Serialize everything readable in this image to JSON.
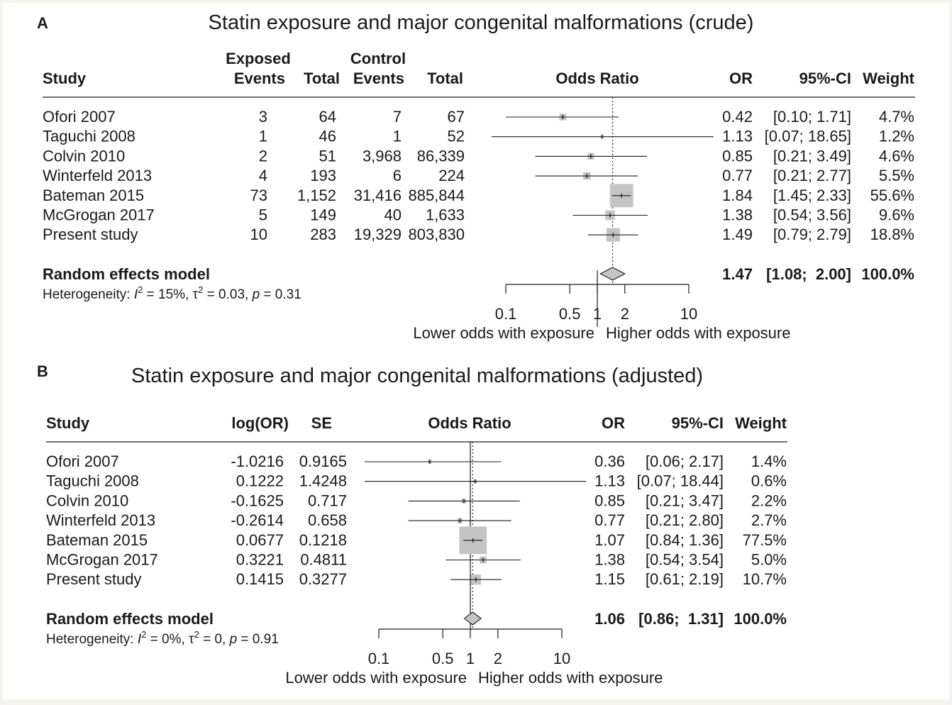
{
  "panels": [
    {
      "letter": "A",
      "title": "Statin exposure and major congenital malformations (crude)",
      "headers_top": [
        "Exposed",
        "Control"
      ],
      "headers": [
        "Study",
        "Events",
        "Total",
        "Events",
        "Total",
        "Odds Ratio",
        "OR",
        "95%-CI",
        "Weight"
      ],
      "rows": [
        {
          "study": "Ofori 2007",
          "cols": [
            "3",
            "64",
            "7",
            "67"
          ],
          "or_text": "0.42",
          "ci_text": "[0.10;  1.71]",
          "weight_text": "4.7%"
        },
        {
          "study": "Taguchi 2008",
          "cols": [
            "1",
            "46",
            "1",
            "52"
          ],
          "or_text": "1.13",
          "ci_text": "[0.07; 18.65]",
          "weight_text": "1.2%"
        },
        {
          "study": "Colvin 2010",
          "cols": [
            "2",
            "51",
            "3,968",
            "86,339"
          ],
          "or_text": "0.85",
          "ci_text": "[0.21;  3.49]",
          "weight_text": "4.6%"
        },
        {
          "study": "Winterfeld 2013",
          "cols": [
            "4",
            "193",
            "6",
            "224"
          ],
          "or_text": "0.77",
          "ci_text": "[0.21;  2.77]",
          "weight_text": "5.5%"
        },
        {
          "study": "Bateman 2015",
          "cols": [
            "73",
            "1,152",
            "31,416",
            "885,844"
          ],
          "or_text": "1.84",
          "ci_text": "[1.45;  2.33]",
          "weight_text": "55.6%"
        },
        {
          "study": "McGrogan 2017",
          "cols": [
            "5",
            "149",
            "40",
            "1,633"
          ],
          "or_text": "1.38",
          "ci_text": "[0.54;  3.56]",
          "weight_text": "9.6%"
        },
        {
          "study": "Present study",
          "cols": [
            "10",
            "283",
            "19,329",
            "803,830"
          ],
          "or_text": "1.49",
          "ci_text": "[0.79;  2.79]",
          "weight_text": "18.8%"
        }
      ],
      "model": {
        "label": "Random effects model",
        "or_text": "1.47",
        "ci_text": "[1.08;  2.00]",
        "weight_text": "100.0%"
      },
      "heterogeneity": {
        "prefix": "Heterogeneity: ",
        "i2_text": " = 15%, ",
        "tau2_text": " = 0.03, ",
        "p_text": " = 0.31"
      },
      "axis_ticks": [
        "0.1",
        "0.5",
        "1",
        "2",
        "10"
      ],
      "axis_labels": [
        "Lower odds with exposure",
        "Higher odds with exposure"
      ]
    },
    {
      "letter": "B",
      "title": "Statin exposure and major congenital malformations (adjusted)",
      "headers": [
        "Study",
        "log(OR)",
        "SE",
        "Odds Ratio",
        "OR",
        "95%-CI",
        "Weight"
      ],
      "rows": [
        {
          "study": "Ofori 2007",
          "cols": [
            "-1.0216",
            "0.9165"
          ],
          "or_text": "0.36",
          "ci_text": "[0.06;  2.17]",
          "weight_text": "1.4%"
        },
        {
          "study": "Taguchi 2008",
          "cols": [
            "0.1222",
            "1.4248"
          ],
          "or_text": "1.13",
          "ci_text": "[0.07; 18.44]",
          "weight_text": "0.6%"
        },
        {
          "study": "Colvin 2010",
          "cols": [
            "-0.1625",
            "0.717"
          ],
          "or_text": "0.85",
          "ci_text": "[0.21;  3.47]",
          "weight_text": "2.2%"
        },
        {
          "study": "Winterfeld 2013",
          "cols": [
            "-0.2614",
            "0.658"
          ],
          "or_text": "0.77",
          "ci_text": "[0.21;  2.80]",
          "weight_text": "2.7%"
        },
        {
          "study": "Bateman 2015",
          "cols": [
            "0.0677",
            "0.1218"
          ],
          "or_text": "1.07",
          "ci_text": "[0.84;  1.36]",
          "weight_text": "77.5%"
        },
        {
          "study": "McGrogan 2017",
          "cols": [
            "0.3221",
            "0.4811"
          ],
          "or_text": "1.38",
          "ci_text": "[0.54;  3.54]",
          "weight_text": "5.0%"
        },
        {
          "study": "Present study",
          "cols": [
            "0.1415",
            "0.3277"
          ],
          "or_text": "1.15",
          "ci_text": "[0.61;  2.19]",
          "weight_text": "10.7%"
        }
      ],
      "model": {
        "label": "Random effects model",
        "or_text": "1.06",
        "ci_text": "[0.86;  1.31]",
        "weight_text": "100.0%"
      },
      "heterogeneity": {
        "prefix": "Heterogeneity: ",
        "i2_text": " = 0%, ",
        "tau2_text": " = 0, ",
        "p_text": " = 0.91"
      },
      "axis_ticks": [
        "0.1",
        "0.5",
        "1",
        "2",
        "10"
      ],
      "axis_labels": [
        "Lower odds with exposure",
        "Higher odds with exposure"
      ]
    }
  ],
  "chart_data": [
    {
      "type": "forest",
      "scale": "log",
      "xlim": [
        0.1,
        10
      ],
      "title": "Statin exposure and major congenital malformations (crude)",
      "studies": [
        {
          "name": "Ofori 2007",
          "or": 0.42,
          "lo": 0.1,
          "hi": 1.71,
          "weight": 4.7
        },
        {
          "name": "Taguchi 2008",
          "or": 1.13,
          "lo": 0.07,
          "hi": 18.65,
          "weight": 1.2
        },
        {
          "name": "Colvin 2010",
          "or": 0.85,
          "lo": 0.21,
          "hi": 3.49,
          "weight": 4.6
        },
        {
          "name": "Winterfeld 2013",
          "or": 0.77,
          "lo": 0.21,
          "hi": 2.77,
          "weight": 5.5
        },
        {
          "name": "Bateman 2015",
          "or": 1.84,
          "lo": 1.45,
          "hi": 2.33,
          "weight": 55.6
        },
        {
          "name": "McGrogan 2017",
          "or": 1.38,
          "lo": 0.54,
          "hi": 3.56,
          "weight": 9.6
        },
        {
          "name": "Present study",
          "or": 1.49,
          "lo": 0.79,
          "hi": 2.79,
          "weight": 18.8
        }
      ],
      "summary": {
        "name": "Random effects model",
        "or": 1.47,
        "lo": 1.08,
        "hi": 2.0,
        "weight": 100.0
      }
    },
    {
      "type": "forest",
      "scale": "log",
      "xlim": [
        0.1,
        10
      ],
      "title": "Statin exposure and major congenital malformations (adjusted)",
      "studies": [
        {
          "name": "Ofori 2007",
          "or": 0.36,
          "lo": 0.06,
          "hi": 2.17,
          "weight": 1.4
        },
        {
          "name": "Taguchi 2008",
          "or": 1.13,
          "lo": 0.07,
          "hi": 18.44,
          "weight": 0.6
        },
        {
          "name": "Colvin 2010",
          "or": 0.85,
          "lo": 0.21,
          "hi": 3.47,
          "weight": 2.2
        },
        {
          "name": "Winterfeld 2013",
          "or": 0.77,
          "lo": 0.21,
          "hi": 2.8,
          "weight": 2.7
        },
        {
          "name": "Bateman 2015",
          "or": 1.07,
          "lo": 0.84,
          "hi": 1.36,
          "weight": 77.5
        },
        {
          "name": "McGrogan 2017",
          "or": 1.38,
          "lo": 0.54,
          "hi": 3.54,
          "weight": 5.0
        },
        {
          "name": "Present study",
          "or": 1.15,
          "lo": 0.61,
          "hi": 2.19,
          "weight": 10.7
        }
      ],
      "summary": {
        "name": "Random effects model",
        "or": 1.06,
        "lo": 0.86,
        "hi": 1.31,
        "weight": 100.0
      }
    }
  ]
}
